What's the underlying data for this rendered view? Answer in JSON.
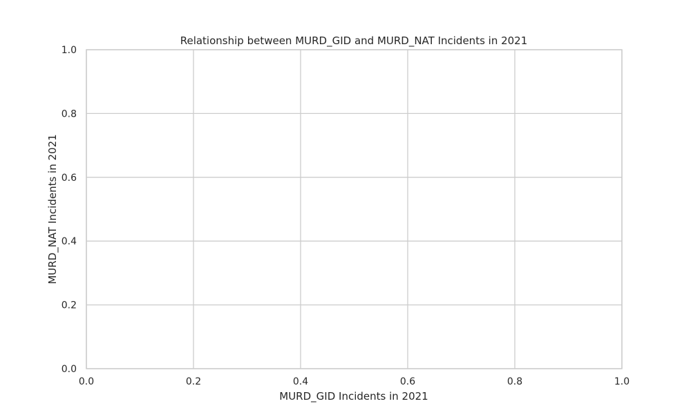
{
  "chart_data": {
    "type": "scatter",
    "title": "Relationship between MURD_GID and MURD_NAT Incidents in 2021",
    "xlabel": "MURD_GID Incidents in 2021",
    "ylabel": "MURD_NAT Incidents in 2021",
    "xlim": [
      0.0,
      1.0
    ],
    "ylim": [
      0.0,
      1.0
    ],
    "xticks": [
      "0.0",
      "0.2",
      "0.4",
      "0.6",
      "0.8",
      "1.0"
    ],
    "yticks": [
      "0.0",
      "0.2",
      "0.4",
      "0.6",
      "0.8",
      "1.0"
    ],
    "grid": true,
    "x": [],
    "y": []
  }
}
